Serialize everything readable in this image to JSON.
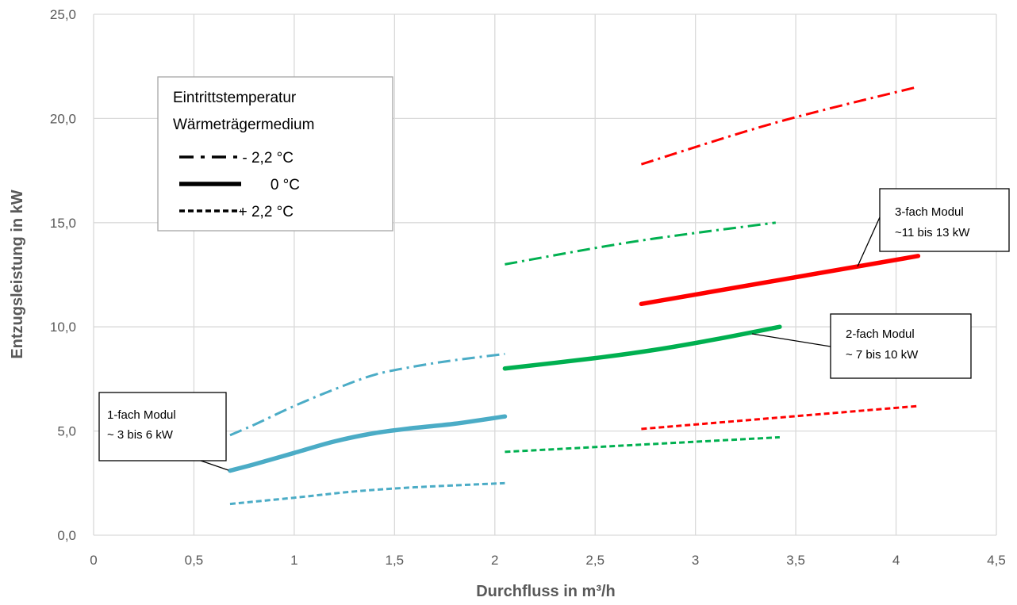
{
  "chart_data": {
    "type": "line",
    "xlabel": "Durchfluss in m³/h",
    "ylabel": "Entzugsleistung in kW",
    "xlim": [
      0,
      4.5
    ],
    "ylim": [
      0,
      25
    ],
    "x_ticks": [
      "0",
      "0,5",
      "1",
      "1,5",
      "2",
      "2,5",
      "3",
      "3,5",
      "4",
      "4,5"
    ],
    "y_ticks": [
      "0,0",
      "5,0",
      "10,0",
      "15,0",
      "20,0",
      "25,0"
    ],
    "grid": true,
    "colors": {
      "one": "#4bacc6",
      "two": "#00b050",
      "three": "#ff0000",
      "grid": "#d9d9d9"
    },
    "series": [
      {
        "module": "one",
        "temp": "minus",
        "x": [
          0.68,
          0.8,
          1.0,
          1.2,
          1.4,
          1.6,
          1.8,
          2.05
        ],
        "y": [
          4.8,
          5.3,
          6.2,
          7.0,
          7.7,
          8.1,
          8.4,
          8.7
        ]
      },
      {
        "module": "one",
        "temp": "zero",
        "x": [
          0.68,
          0.8,
          1.0,
          1.2,
          1.4,
          1.6,
          1.8,
          2.05
        ],
        "y": [
          3.1,
          3.4,
          3.95,
          4.5,
          4.9,
          5.15,
          5.35,
          5.7
        ]
      },
      {
        "module": "one",
        "temp": "plus",
        "x": [
          0.68,
          1.0,
          1.3,
          1.6,
          2.05
        ],
        "y": [
          1.5,
          1.8,
          2.1,
          2.3,
          2.5
        ]
      },
      {
        "module": "two",
        "temp": "minus",
        "x": [
          2.05,
          2.7,
          3.4
        ],
        "y": [
          13.0,
          14.1,
          15.0
        ]
      },
      {
        "module": "two",
        "temp": "zero",
        "x": [
          2.05,
          2.5,
          2.8,
          3.1,
          3.42
        ],
        "y": [
          8.0,
          8.5,
          8.9,
          9.4,
          10.0
        ]
      },
      {
        "module": "two",
        "temp": "plus",
        "x": [
          2.05,
          3.42
        ],
        "y": [
          4.0,
          4.7
        ]
      },
      {
        "module": "three",
        "temp": "minus",
        "x": [
          2.73,
          3.4,
          4.1
        ],
        "y": [
          17.8,
          19.8,
          21.5
        ]
      },
      {
        "module": "three",
        "temp": "zero",
        "x": [
          2.73,
          4.11
        ],
        "y": [
          11.1,
          13.4
        ]
      },
      {
        "module": "three",
        "temp": "plus",
        "x": [
          2.73,
          4.11
        ],
        "y": [
          5.1,
          6.2
        ]
      }
    ],
    "legend": {
      "title_line1": "Eintrittstemperatur",
      "title_line2": "Wärmeträgermedium",
      "entries": [
        {
          "temp": "minus",
          "label": "- 2,2 °C"
        },
        {
          "temp": "zero",
          "label": "0 °C"
        },
        {
          "temp": "plus",
          "label": "+ 2,2 °C"
        }
      ]
    },
    "annotations": [
      {
        "name": "annotation-1fach",
        "line1": "1-fach Modul",
        "line2": "~ 3 bis 6 kW",
        "target_x": 0.68,
        "target_y": 3.1
      },
      {
        "name": "annotation-2fach",
        "line1": "2-fach Modul",
        "line2": "~ 7 bis 10 kW",
        "target_x": 3.3,
        "target_y": 9.75
      },
      {
        "name": "annotation-3fach",
        "line1": "3-fach Modul",
        "line2": "~11 bis 13 kW",
        "target_x": 3.82,
        "target_y": 12.9
      }
    ]
  }
}
